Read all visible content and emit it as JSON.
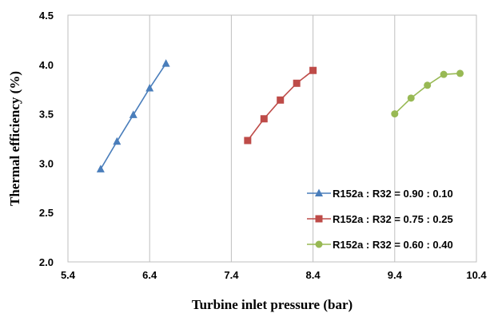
{
  "chart_data": {
    "type": "line",
    "title": "",
    "xlabel": "Turbine inlet pressure (bar)",
    "ylabel": "Thermal efficiency (%)",
    "xlim": [
      5.4,
      10.4
    ],
    "ylim": [
      2.0,
      4.5
    ],
    "x_ticks": [
      "5.4",
      "6.4",
      "7.4",
      "8.4",
      "9.4",
      "10.4"
    ],
    "y_ticks": [
      "2.0",
      "2.5",
      "3.0",
      "3.5",
      "4.0",
      "4.5"
    ],
    "grid": "vertical",
    "legend_position": "bottom-right",
    "series": [
      {
        "name": "R152a : R32 = 0.90 : 0.10",
        "color": "#4a7ebb",
        "marker": "triangle",
        "x": [
          5.8,
          6.0,
          6.2,
          6.4,
          6.6
        ],
        "y": [
          2.94,
          3.22,
          3.49,
          3.76,
          4.01
        ]
      },
      {
        "name": "R152a : R32 = 0.75 : 0.25",
        "color": "#be4b48",
        "marker": "square",
        "x": [
          7.6,
          7.8,
          8.0,
          8.2,
          8.4
        ],
        "y": [
          3.23,
          3.45,
          3.64,
          3.81,
          3.94
        ]
      },
      {
        "name": "R152a : R32 = 0.60 : 0.40",
        "color": "#98b954",
        "marker": "circle",
        "x": [
          9.4,
          9.6,
          9.8,
          10.0,
          10.2
        ],
        "y": [
          3.5,
          3.66,
          3.79,
          3.9,
          3.91
        ]
      }
    ]
  }
}
